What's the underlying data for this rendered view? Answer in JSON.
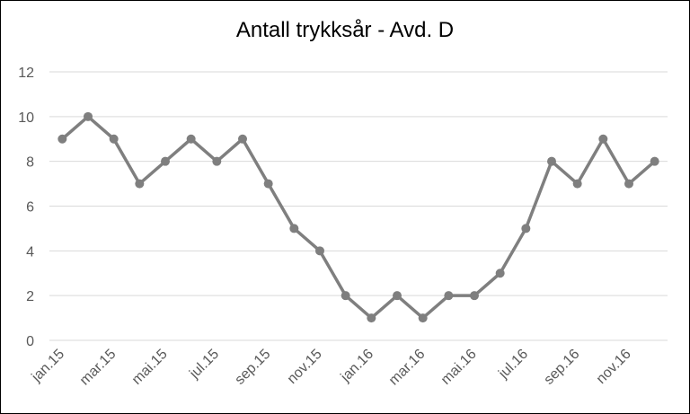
{
  "chart_data": {
    "type": "line",
    "title": "Antall trykksår - Avd. D",
    "xlabel": "",
    "ylabel": "",
    "ylim": [
      0,
      12
    ],
    "yticks": [
      "0",
      "2",
      "4",
      "6",
      "8",
      "10",
      "12"
    ],
    "grid": true,
    "legend": "none",
    "x_tick_labels": [
      "jan.15",
      "mar.15",
      "mai.15",
      "jul.15",
      "sep.15",
      "nov.15",
      "jan.16",
      "mar.16",
      "mai.16",
      "jul.16",
      "sep.16",
      "nov.16"
    ],
    "x": [
      "jan.15",
      "feb.15",
      "mar.15",
      "apr.15",
      "mai.15",
      "jun.15",
      "jul.15",
      "aug.15",
      "sep.15",
      "okt.15",
      "nov.15",
      "des.15",
      "jan.16",
      "feb.16",
      "mar.16",
      "apr.16",
      "mai.16",
      "jun.16",
      "jul.16",
      "aug.16",
      "sep.16",
      "okt.16",
      "nov.16",
      "des.16"
    ],
    "series": [
      {
        "values": [
          9,
          10,
          9,
          7,
          8,
          9,
          8,
          9,
          7,
          5,
          4,
          2,
          1,
          2,
          1,
          2,
          2,
          3,
          5,
          8,
          7,
          9,
          7,
          8
        ]
      }
    ],
    "colors": {
      "line": "#7f7f7f",
      "grid": "#d9d9d9",
      "text": "#595959"
    }
  }
}
